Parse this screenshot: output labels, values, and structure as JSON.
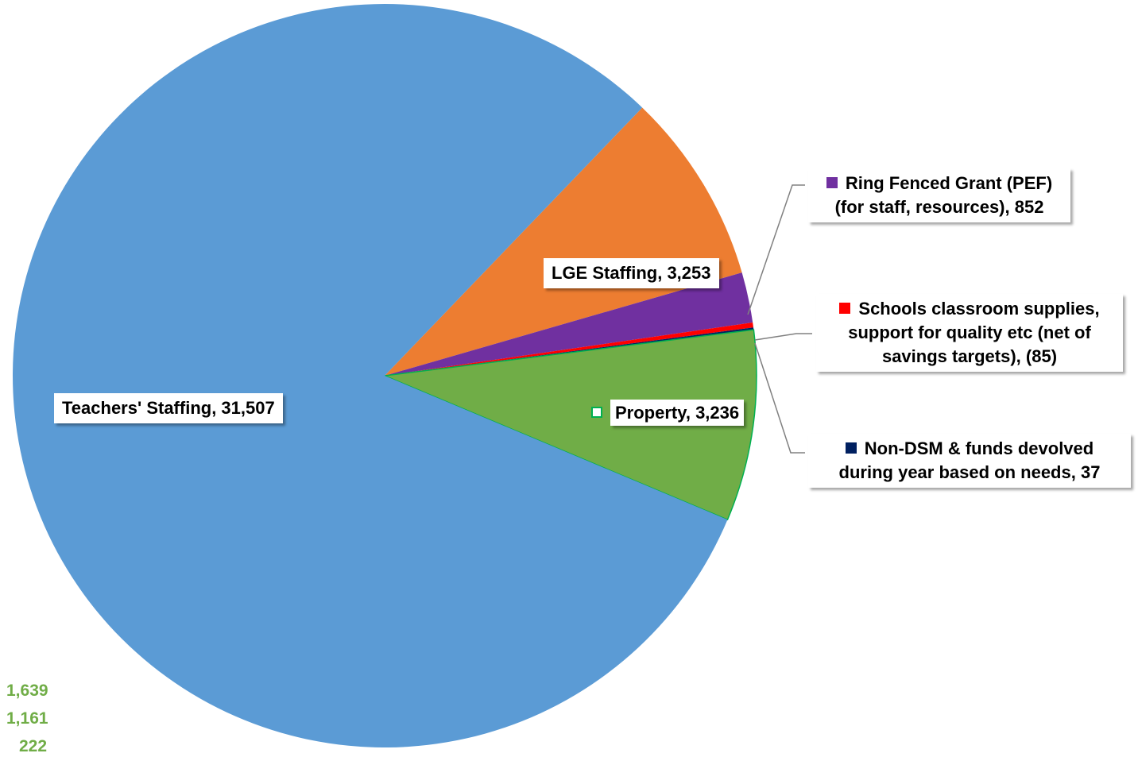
{
  "chart_data": {
    "type": "pie",
    "slices": [
      {
        "label": "Teachers' Staffing",
        "value_text": "31,507",
        "value": 31507,
        "color": "#5b9bd5"
      },
      {
        "label": "LGE Staffing",
        "value_text": "3,253",
        "value": 3253,
        "color": "#ed7d31"
      },
      {
        "label": "Ring Fenced Grant (PEF) (for staff, resources)",
        "value_text": "852",
        "value": 852,
        "color": "#7030a0"
      },
      {
        "label": "Schools classroom supplies, support for quality etc (net of savings targets)",
        "value_text": "(85)",
        "value": -85,
        "color": "#ff0000"
      },
      {
        "label": "Non-DSM & funds devolved during year based on needs",
        "value_text": "37",
        "value": 37,
        "color": "#002060"
      },
      {
        "label": "Property",
        "value_text": "3,236",
        "value": 3236,
        "color": "#70ad47"
      }
    ],
    "data_labels": {
      "teachers": "Teachers' Staffing, 31,507",
      "lge": "LGE Staffing, 3,253",
      "pef_line1": "Ring Fenced Grant (PEF)",
      "pef_line2": "(for staff, resources), 852",
      "supplies_line1": "Schools classroom supplies,",
      "supplies_line2": "support for quality etc (net of",
      "supplies_line3": "savings targets), (85)",
      "nondsm_line1": "Non-DSM & funds devolved",
      "nondsm_line2": "during year based on needs, 37",
      "property": "Property, 3,236"
    },
    "side_values": [
      "1,639",
      "1,161",
      "222"
    ]
  }
}
